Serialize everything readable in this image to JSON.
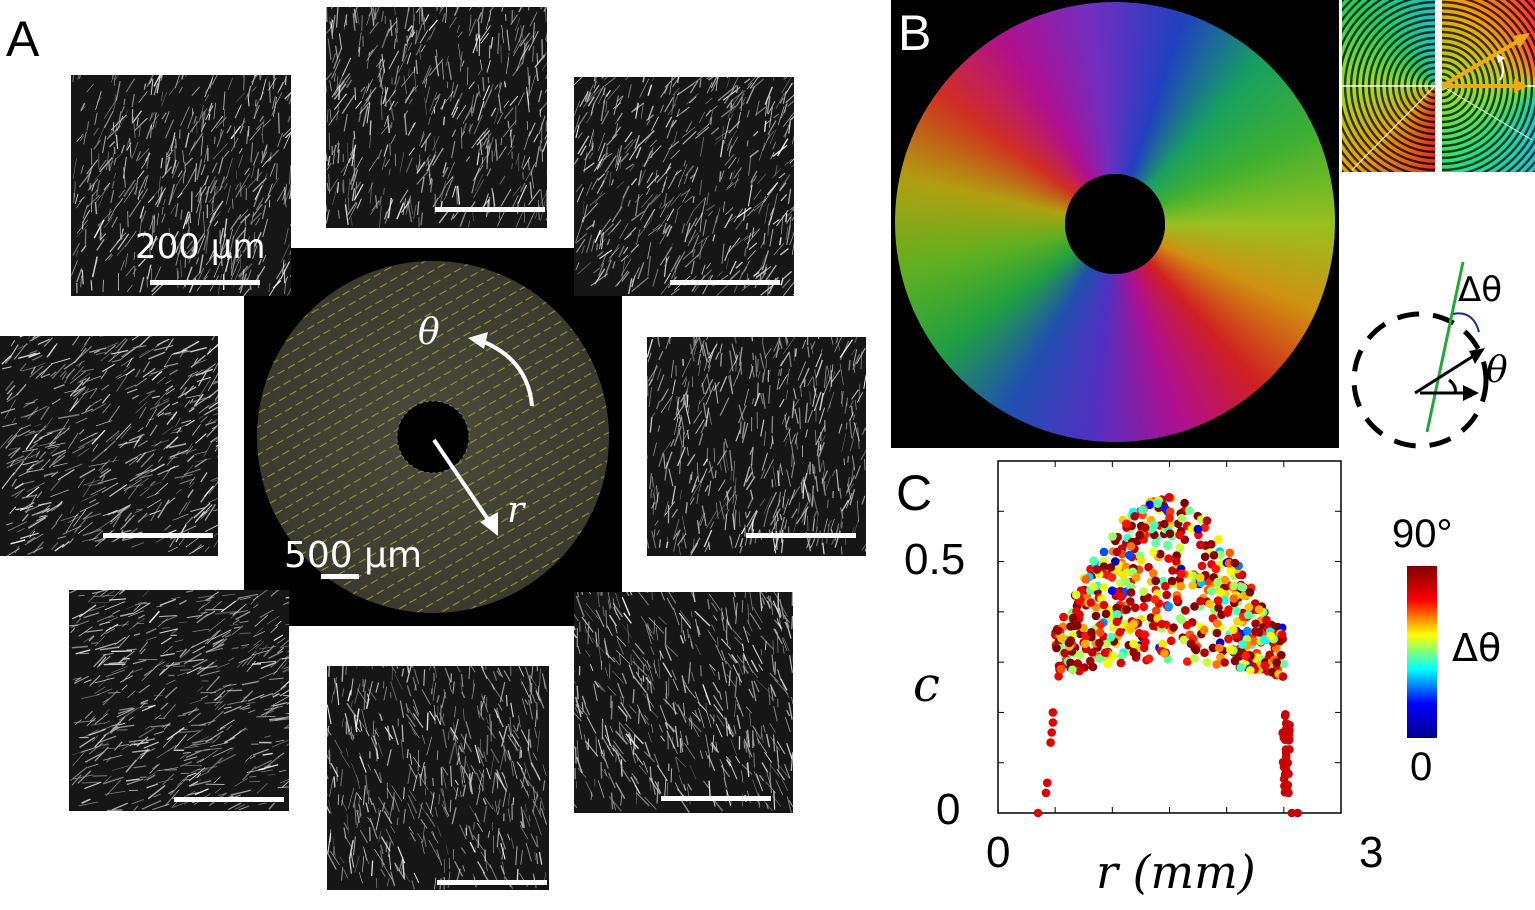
{
  "figure": {
    "panel_a": {
      "letter": "A",
      "scale_label_tile": "200 μm",
      "scale_label_center": "500 μm",
      "theta_label": "θ",
      "r_label": "r"
    },
    "panel_b": {
      "letter": "B",
      "delta_theta_label": "Δθ",
      "theta_label": "θ"
    },
    "panel_c": {
      "letter": "C",
      "colorbar_top": "90°",
      "colorbar_bottom": "0",
      "colorbar_label": "Δθ"
    }
  },
  "colors": {
    "arrow_orange": "#f0a818",
    "director_green": "#22a83a",
    "colormap": [
      "#00008f",
      "#0000ff",
      "#00ffff",
      "#ffff00",
      "#ff0000",
      "#800000"
    ]
  },
  "chart_data": {
    "type": "scatter",
    "title": "",
    "xlabel": "r (mm)",
    "ylabel": "c",
    "xlim": [
      0,
      3
    ],
    "ylim": [
      0,
      0.7
    ],
    "xticks": [
      "0",
      "3"
    ],
    "yticks": [
      "0",
      "0.5"
    ],
    "grid": false,
    "color_variable": "Δθ",
    "color_range": [
      "0",
      "90°"
    ],
    "series_summary": {
      "inner_edge_points": [
        [
          0.35,
          0.0
        ],
        [
          0.42,
          0.04
        ],
        [
          0.43,
          0.06
        ],
        [
          0.46,
          0.14
        ],
        [
          0.47,
          0.16
        ],
        [
          0.48,
          0.18
        ],
        [
          0.48,
          0.2
        ]
      ],
      "bulk_r_range": [
        0.5,
        2.5
      ],
      "bulk_c_range": [
        0.27,
        0.63
      ],
      "outer_edge_points": [
        [
          2.5,
          0.15
        ],
        [
          2.52,
          0.12
        ],
        [
          2.53,
          0.08
        ],
        [
          2.54,
          0.04
        ],
        [
          2.57,
          0.0
        ],
        [
          2.62,
          0.0
        ]
      ]
    }
  }
}
